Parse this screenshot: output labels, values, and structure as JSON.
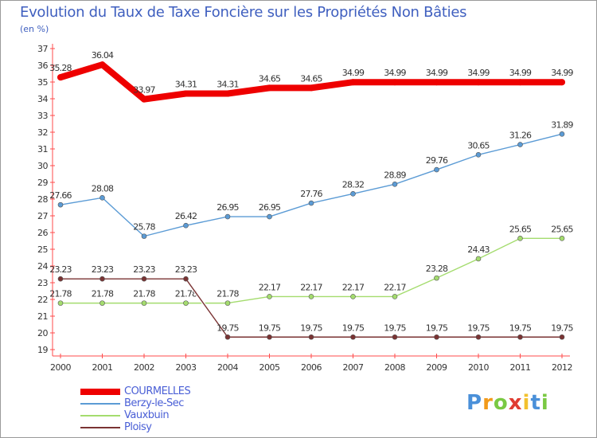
{
  "chart_data": {
    "type": "line",
    "title": "Evolution du Taux de Taxe Foncière sur les Propriétés Non Bâties",
    "subtitle": "(en %)",
    "x": [
      "2000",
      "2001",
      "2002",
      "2003",
      "2004",
      "2005",
      "2006",
      "2007",
      "2008",
      "2009",
      "2010",
      "2011",
      "2012"
    ],
    "ylim": [
      19,
      37
    ],
    "yticks": [
      19,
      20,
      21,
      22,
      23,
      24,
      25,
      26,
      27,
      28,
      29,
      30,
      31,
      32,
      33,
      34,
      35,
      36,
      37
    ],
    "grid": false,
    "legend_position": "bottom-left",
    "series": [
      {
        "name": "COURMELLES",
        "color": "#ee0000",
        "values": [
          35.28,
          36.04,
          33.97,
          34.31,
          34.31,
          34.65,
          34.65,
          34.99,
          34.99,
          34.99,
          34.99,
          34.99,
          34.99
        ],
        "labels": [
          "35.28",
          "36.04",
          "33.97",
          "34.31",
          "34.31",
          "34.65",
          "34.65",
          "34.99",
          "34.99",
          "34.99",
          "34.99",
          "34.99",
          "34.99"
        ]
      },
      {
        "name": "Berzy-le-Sec",
        "color": "#5b9bd5",
        "values": [
          27.66,
          28.08,
          25.78,
          26.42,
          26.95,
          26.95,
          27.76,
          28.32,
          28.89,
          29.76,
          30.65,
          31.26,
          31.89
        ],
        "labels": [
          "27.66",
          "28.08",
          "25.78",
          "26.42",
          "26.95",
          "26.95",
          "27.76",
          "28.32",
          "28.89",
          "29.76",
          "30.65",
          "31.26",
          "31.89"
        ]
      },
      {
        "name": "Vauxbuin",
        "color": "#a4dc6e",
        "values": [
          21.78,
          21.78,
          21.78,
          21.78,
          21.78,
          22.17,
          22.17,
          22.17,
          22.17,
          23.28,
          24.43,
          25.65,
          25.65
        ],
        "labels": [
          "21.78",
          "21.78",
          "21.78",
          "21.78",
          "21.78",
          "22.17",
          "22.17",
          "22.17",
          "22.17",
          "23.28",
          "24.43",
          "25.65",
          "25.65"
        ]
      },
      {
        "name": "Ploisy",
        "color": "#7a3333",
        "values": [
          23.23,
          23.23,
          23.23,
          23.23,
          19.75,
          19.75,
          19.75,
          19.75,
          19.75,
          19.75,
          19.75,
          19.75,
          19.75
        ],
        "labels": [
          "23.23",
          "23.23",
          "23.23",
          "23.23",
          "19.75",
          "19.75",
          "19.75",
          "19.75",
          "19.75",
          "19.75",
          "19.75",
          "19.75",
          "19.75"
        ]
      }
    ]
  },
  "logo": {
    "letters": [
      "P",
      "r",
      "o",
      "x",
      "i",
      "t",
      "i"
    ],
    "colors": [
      "#4a90d9",
      "#f29a1a",
      "#7ac943",
      "#e03c31",
      "#f2c12e",
      "#4a90d9",
      "#7ac943"
    ]
  }
}
